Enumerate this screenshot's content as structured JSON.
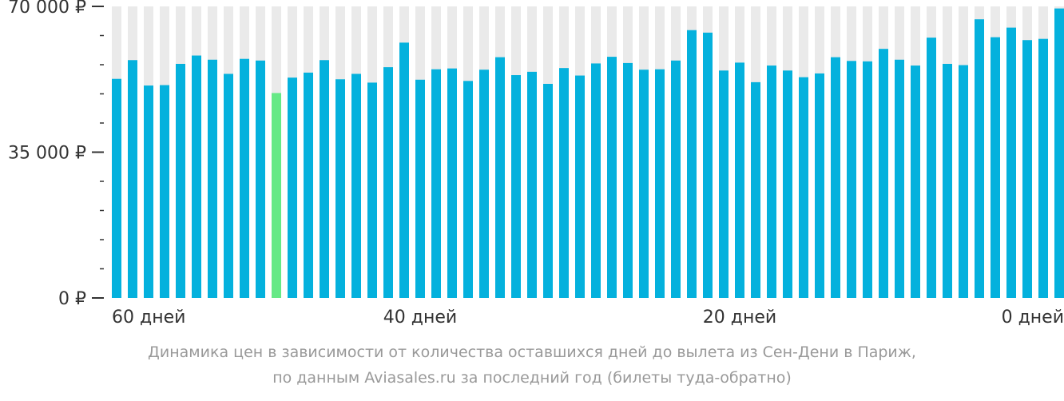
{
  "chart_data": {
    "type": "bar",
    "x_tick_labels": [
      "60 дней",
      "40 дней",
      "20 дней",
      "0 дней"
    ],
    "x_tick_positions": [
      59,
      40,
      20,
      0
    ],
    "y_tick_labels": [
      "70 000 ₽",
      "35 000 ₽",
      "0 ₽"
    ],
    "y_tick_values": [
      70000,
      35000,
      0
    ],
    "ylim": [
      0,
      70000
    ],
    "x_range_days": [
      59,
      0
    ],
    "values": [
      52600,
      57100,
      51000,
      51100,
      56200,
      58200,
      57200,
      53800,
      57400,
      57000,
      49200,
      52900,
      54100,
      57100,
      52500,
      53800,
      51700,
      55400,
      61300,
      52400,
      54900,
      55100,
      52100,
      54800,
      57800,
      53500,
      54300,
      51400,
      55200,
      53400,
      56300,
      57900,
      56400,
      54800,
      54900,
      57000,
      64300,
      63700,
      54600,
      56500,
      51800,
      55800,
      54600,
      53000,
      53900,
      57800,
      56900,
      56800,
      59800,
      57200,
      55800,
      62500,
      56200,
      55900,
      66900,
      62600,
      64900,
      61900,
      62200,
      69500
    ],
    "highlight_index": 10,
    "colors": {
      "bar": "#04b1dd",
      "highlight": "#66e986",
      "background_bar": "#eaeaea",
      "axis": "#333333"
    },
    "caption_line1": "Динамика цен в зависимости от количества оставшихся дней до вылета из Сен-Дени в Париж,",
    "caption_line2": "по данным Aviasales.ru за последний год (билеты туда-обратно)"
  }
}
